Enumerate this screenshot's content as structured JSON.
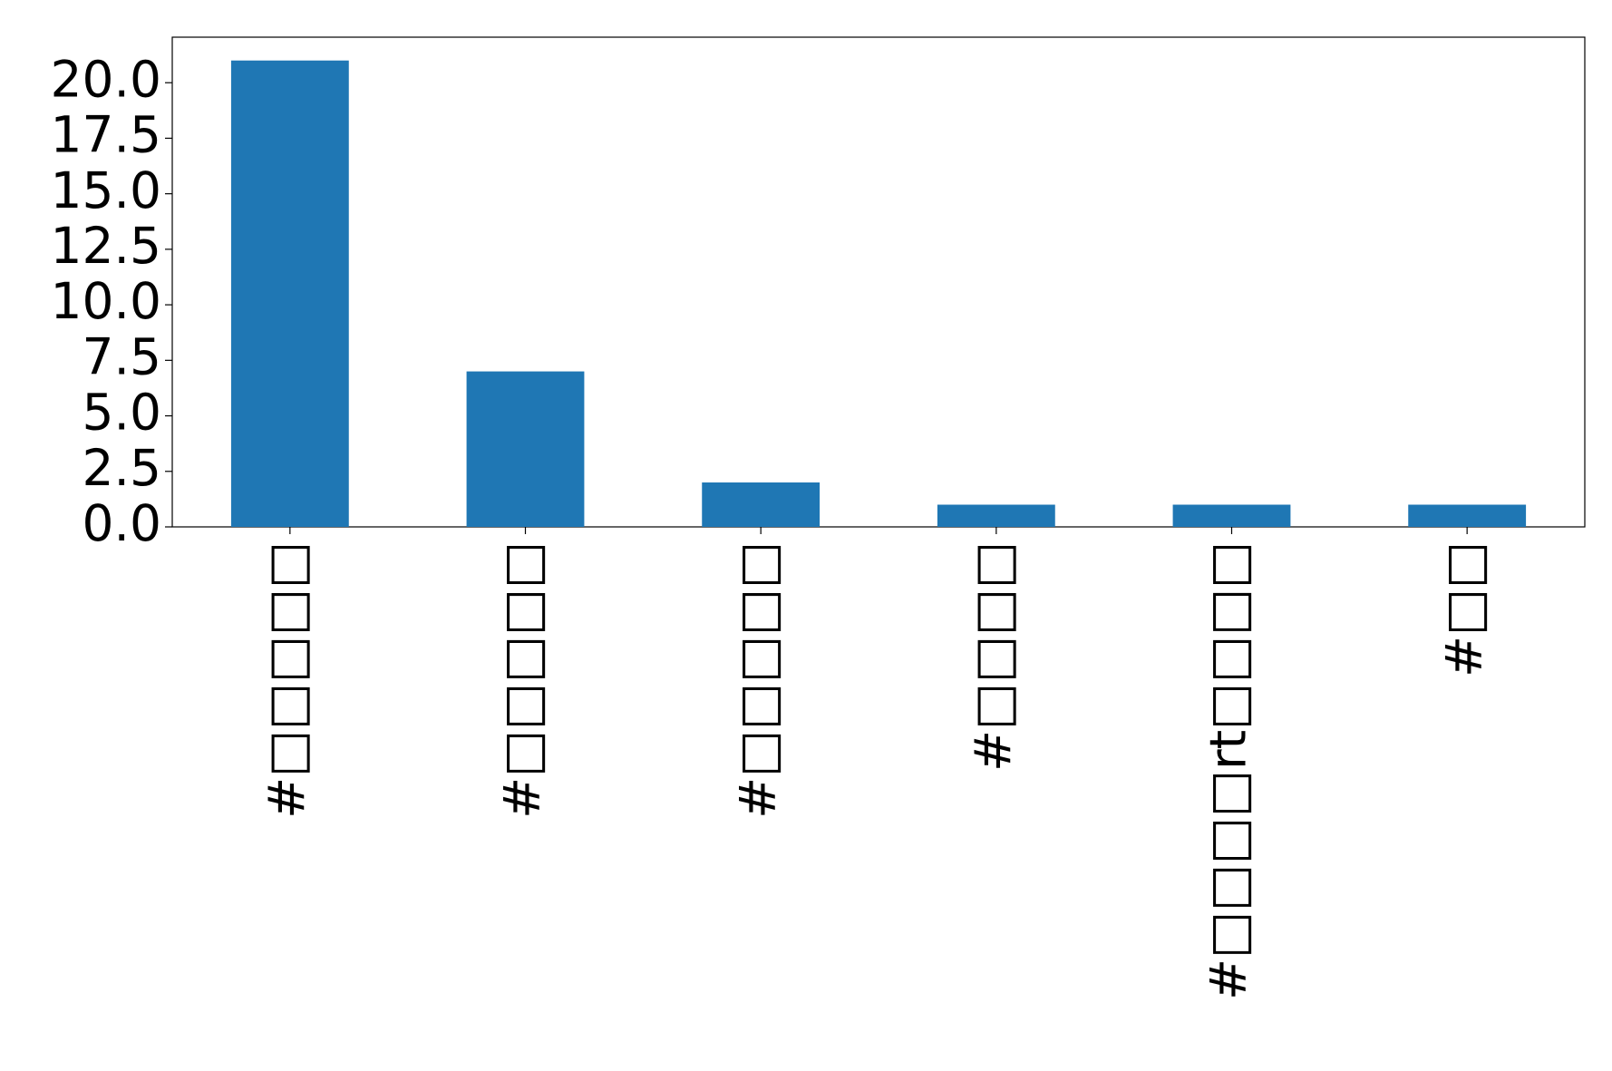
{
  "chart_data": {
    "type": "bar",
    "categories": [
      "#□□□□□",
      "#□□□□□",
      "#□□□□□",
      "#□□□□",
      "#□□□□rt□□□□",
      "#□□"
    ],
    "values": [
      21,
      7,
      2,
      1,
      1,
      1
    ],
    "color": "#1f77b4",
    "ylim": [
      0,
      22.05
    ],
    "yticks": [
      {
        "value": 0,
        "label": "0.0"
      },
      {
        "value": 2.5,
        "label": "2.5"
      },
      {
        "value": 5,
        "label": "5.0"
      },
      {
        "value": 7.5,
        "label": "7.5"
      },
      {
        "value": 10,
        "label": "10.0"
      },
      {
        "value": 12.5,
        "label": "12.5"
      },
      {
        "value": 15,
        "label": "15.0"
      },
      {
        "value": 17.5,
        "label": "17.5"
      },
      {
        "value": 20,
        "label": "20.0"
      }
    ],
    "grid": false
  }
}
